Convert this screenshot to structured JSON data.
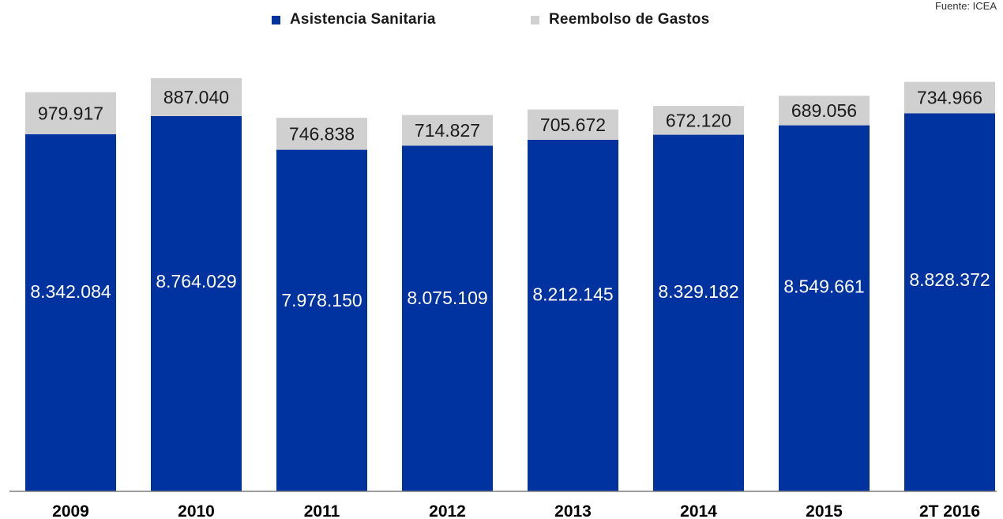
{
  "source_text": "Fuente: ICEA",
  "colors": {
    "asistencia": "#0033a0",
    "reembolso": "#d0d0d0",
    "axis": "#7f7f7f"
  },
  "legend": [
    {
      "name": "Asistencia Sanitaria",
      "color": "#0033a0"
    },
    {
      "name": "Reembolso de Gastos",
      "color": "#d0d0d0"
    }
  ],
  "chart_data": {
    "type": "bar",
    "stacked": true,
    "categories": [
      "2009",
      "2010",
      "2011",
      "2012",
      "2013",
      "2014",
      "2015",
      "2T 2016"
    ],
    "series": [
      {
        "name": "Asistencia Sanitaria",
        "values": [
          8342084,
          8764029,
          7978150,
          8075109,
          8212145,
          8329182,
          8549661,
          8828372
        ],
        "labels": [
          "8.342.084",
          "8.764.029",
          "7.978.150",
          "8.075.109",
          "8.212.145",
          "8.329.182",
          "8.549.661",
          "8.828.372"
        ]
      },
      {
        "name": "Reembolso de Gastos",
        "values": [
          979917,
          887040,
          746838,
          714827,
          705672,
          672120,
          689056,
          734966
        ],
        "labels": [
          "979.917",
          "887.040",
          "746.838",
          "714.827",
          "705.672",
          "672.120",
          "689.056",
          "734.966"
        ]
      }
    ],
    "legend_position": "top",
    "grid": false,
    "ylim": [
      0,
      9900000
    ]
  }
}
